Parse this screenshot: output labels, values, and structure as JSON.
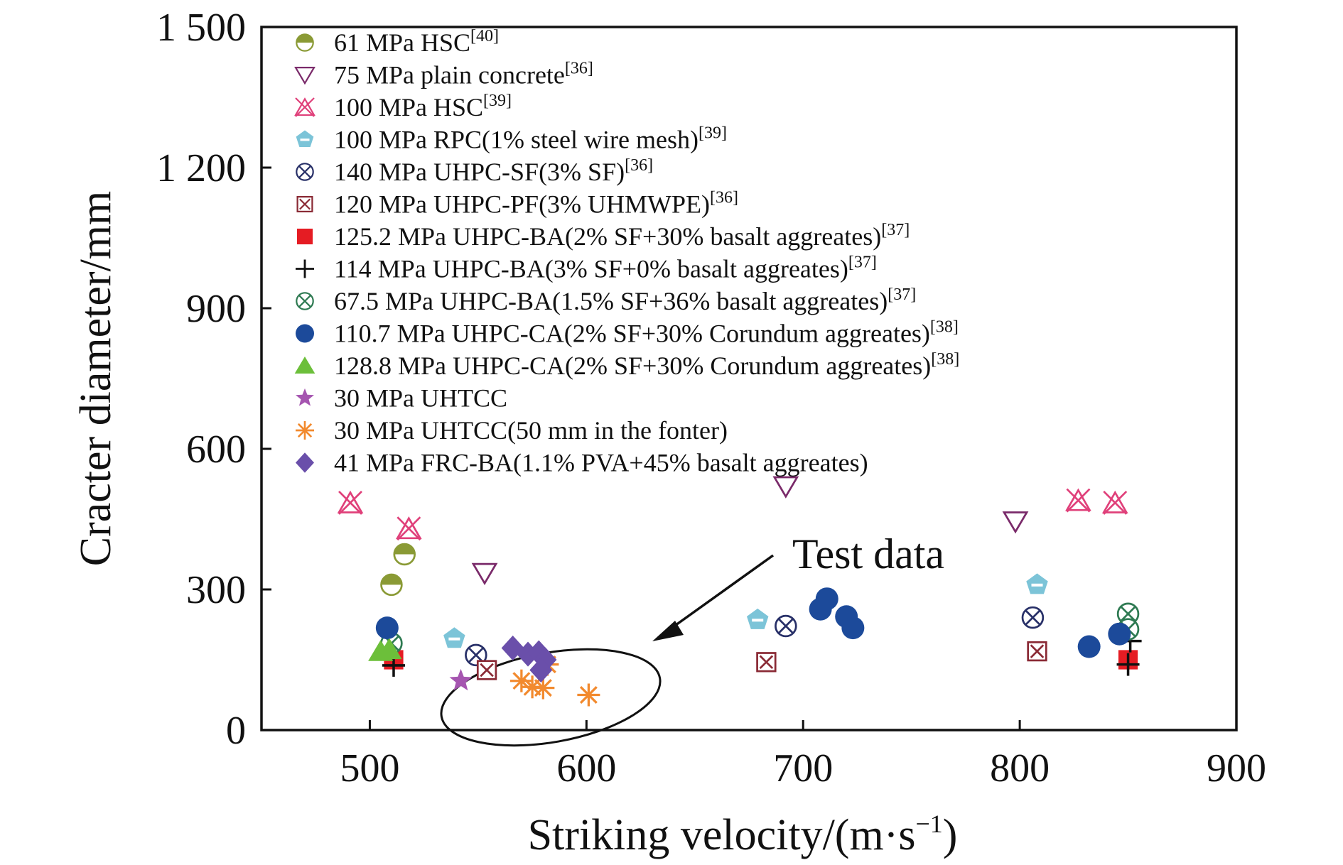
{
  "chart_data": {
    "type": "scatter",
    "xlabel": "Striking velocity/(m·s",
    "xlabel_sup": "−1",
    "xlabel_end": ")",
    "ylabel": "Cracter diameter/mm",
    "xlim": [
      450,
      900
    ],
    "ylim": [
      0,
      1500
    ],
    "x_ticks": [
      "500",
      "600",
      "700",
      "800",
      "900"
    ],
    "y_ticks": [
      "0",
      "300",
      "600",
      "900",
      "1 200",
      "1 500"
    ],
    "grid": false,
    "legend_position": "top-left",
    "annotation": {
      "text": "Test data"
    },
    "series": [
      {
        "name": "61 MPa HSC",
        "ref": "[40]",
        "marker": "half-circle",
        "color": "#8a9a35",
        "points": [
          [
            510,
            310
          ],
          [
            516,
            375
          ]
        ]
      },
      {
        "name": "75 MPa plain concrete",
        "ref": "[36]",
        "marker": "triangle-down-open",
        "color": "#7a2a6a",
        "points": [
          [
            553,
            335
          ],
          [
            692,
            520
          ],
          [
            798,
            445
          ]
        ]
      },
      {
        "name": "100 MPa HSC",
        "ref": "[39]",
        "marker": "x-triangle",
        "color": "#e0407a",
        "points": [
          [
            491,
            485
          ],
          [
            518,
            430
          ],
          [
            827,
            490
          ],
          [
            844,
            485
          ]
        ]
      },
      {
        "name": "100 MPa RPC(1% steel wire mesh)",
        "ref": "[39]",
        "marker": "pentagon",
        "color": "#7cc4d8",
        "points": [
          [
            539,
            195
          ],
          [
            679,
            235
          ],
          [
            808,
            310
          ]
        ]
      },
      {
        "name": "140 MPa UHPC-SF(3% SF)",
        "ref": "[36]",
        "marker": "circle-x",
        "color": "#283068",
        "points": [
          [
            549,
            160
          ],
          [
            692,
            222
          ],
          [
            806,
            240
          ]
        ]
      },
      {
        "name": "120 MPa UHPC-PF(3% UHMWPE)",
        "ref": "[36]",
        "marker": "square-x",
        "color": "#8a2a35",
        "points": [
          [
            554,
            128
          ],
          [
            683,
            145
          ],
          [
            808,
            168
          ]
        ]
      },
      {
        "name": "125.2 MPa UHPC-BA(2% SF+30% basalt aggreates)",
        "ref": "[37]",
        "marker": "square",
        "color": "#e51c23",
        "points": [
          [
            511,
            150
          ],
          [
            850,
            150
          ]
        ]
      },
      {
        "name": "114 MPa UHPC-BA(3% SF+0% basalt aggreates)",
        "ref": "[37]",
        "marker": "plus",
        "color": "#111111",
        "points": [
          [
            511,
            138
          ],
          [
            850,
            140
          ],
          [
            851,
            190
          ]
        ]
      },
      {
        "name": "67.5 MPa UHPC-BA(1.5% SF+36% basalt aggreates)",
        "ref": "[37]",
        "marker": "circle-x",
        "color": "#2e7a52",
        "points": [
          [
            510,
            185
          ],
          [
            850,
            248
          ],
          [
            850,
            215
          ]
        ]
      },
      {
        "name": "110.7 MPa UHPC-CA(2% SF+30% Corundum aggreates)",
        "ref": "[38]",
        "marker": "circle",
        "color": "#1c4a9a",
        "points": [
          [
            508,
            218
          ],
          [
            708,
            258
          ],
          [
            711,
            280
          ],
          [
            720,
            242
          ],
          [
            723,
            218
          ],
          [
            832,
            178
          ],
          [
            846,
            205
          ]
        ]
      },
      {
        "name": "128.8 MPa UHPC-CA(2% SF+30% Corundum aggreates)",
        "ref": "[38]",
        "marker": "triangle",
        "color": "#6cbf3a",
        "points": [
          [
            505,
            168
          ],
          [
            509,
            172
          ]
        ]
      },
      {
        "name": "30 MPa UHTCC",
        "ref": "",
        "marker": "star",
        "color": "#a555b0",
        "points": [
          [
            542,
            105
          ]
        ]
      },
      {
        "name": "30 MPa UHTCC(50 mm in the fonter)",
        "ref": "",
        "marker": "asterisk",
        "color": "#f28a2e",
        "points": [
          [
            570,
            105
          ],
          [
            575,
            92
          ],
          [
            580,
            90
          ],
          [
            582,
            140
          ],
          [
            601,
            75
          ]
        ]
      },
      {
        "name": "41 MPa FRC-BA(1.1% PVA+45% basalt aggreates)",
        "ref": "",
        "marker": "diamond",
        "color": "#6a4faa",
        "points": [
          [
            566,
            175
          ],
          [
            573,
            162
          ],
          [
            578,
            165
          ],
          [
            581,
            150
          ],
          [
            579,
            128
          ]
        ]
      }
    ]
  }
}
